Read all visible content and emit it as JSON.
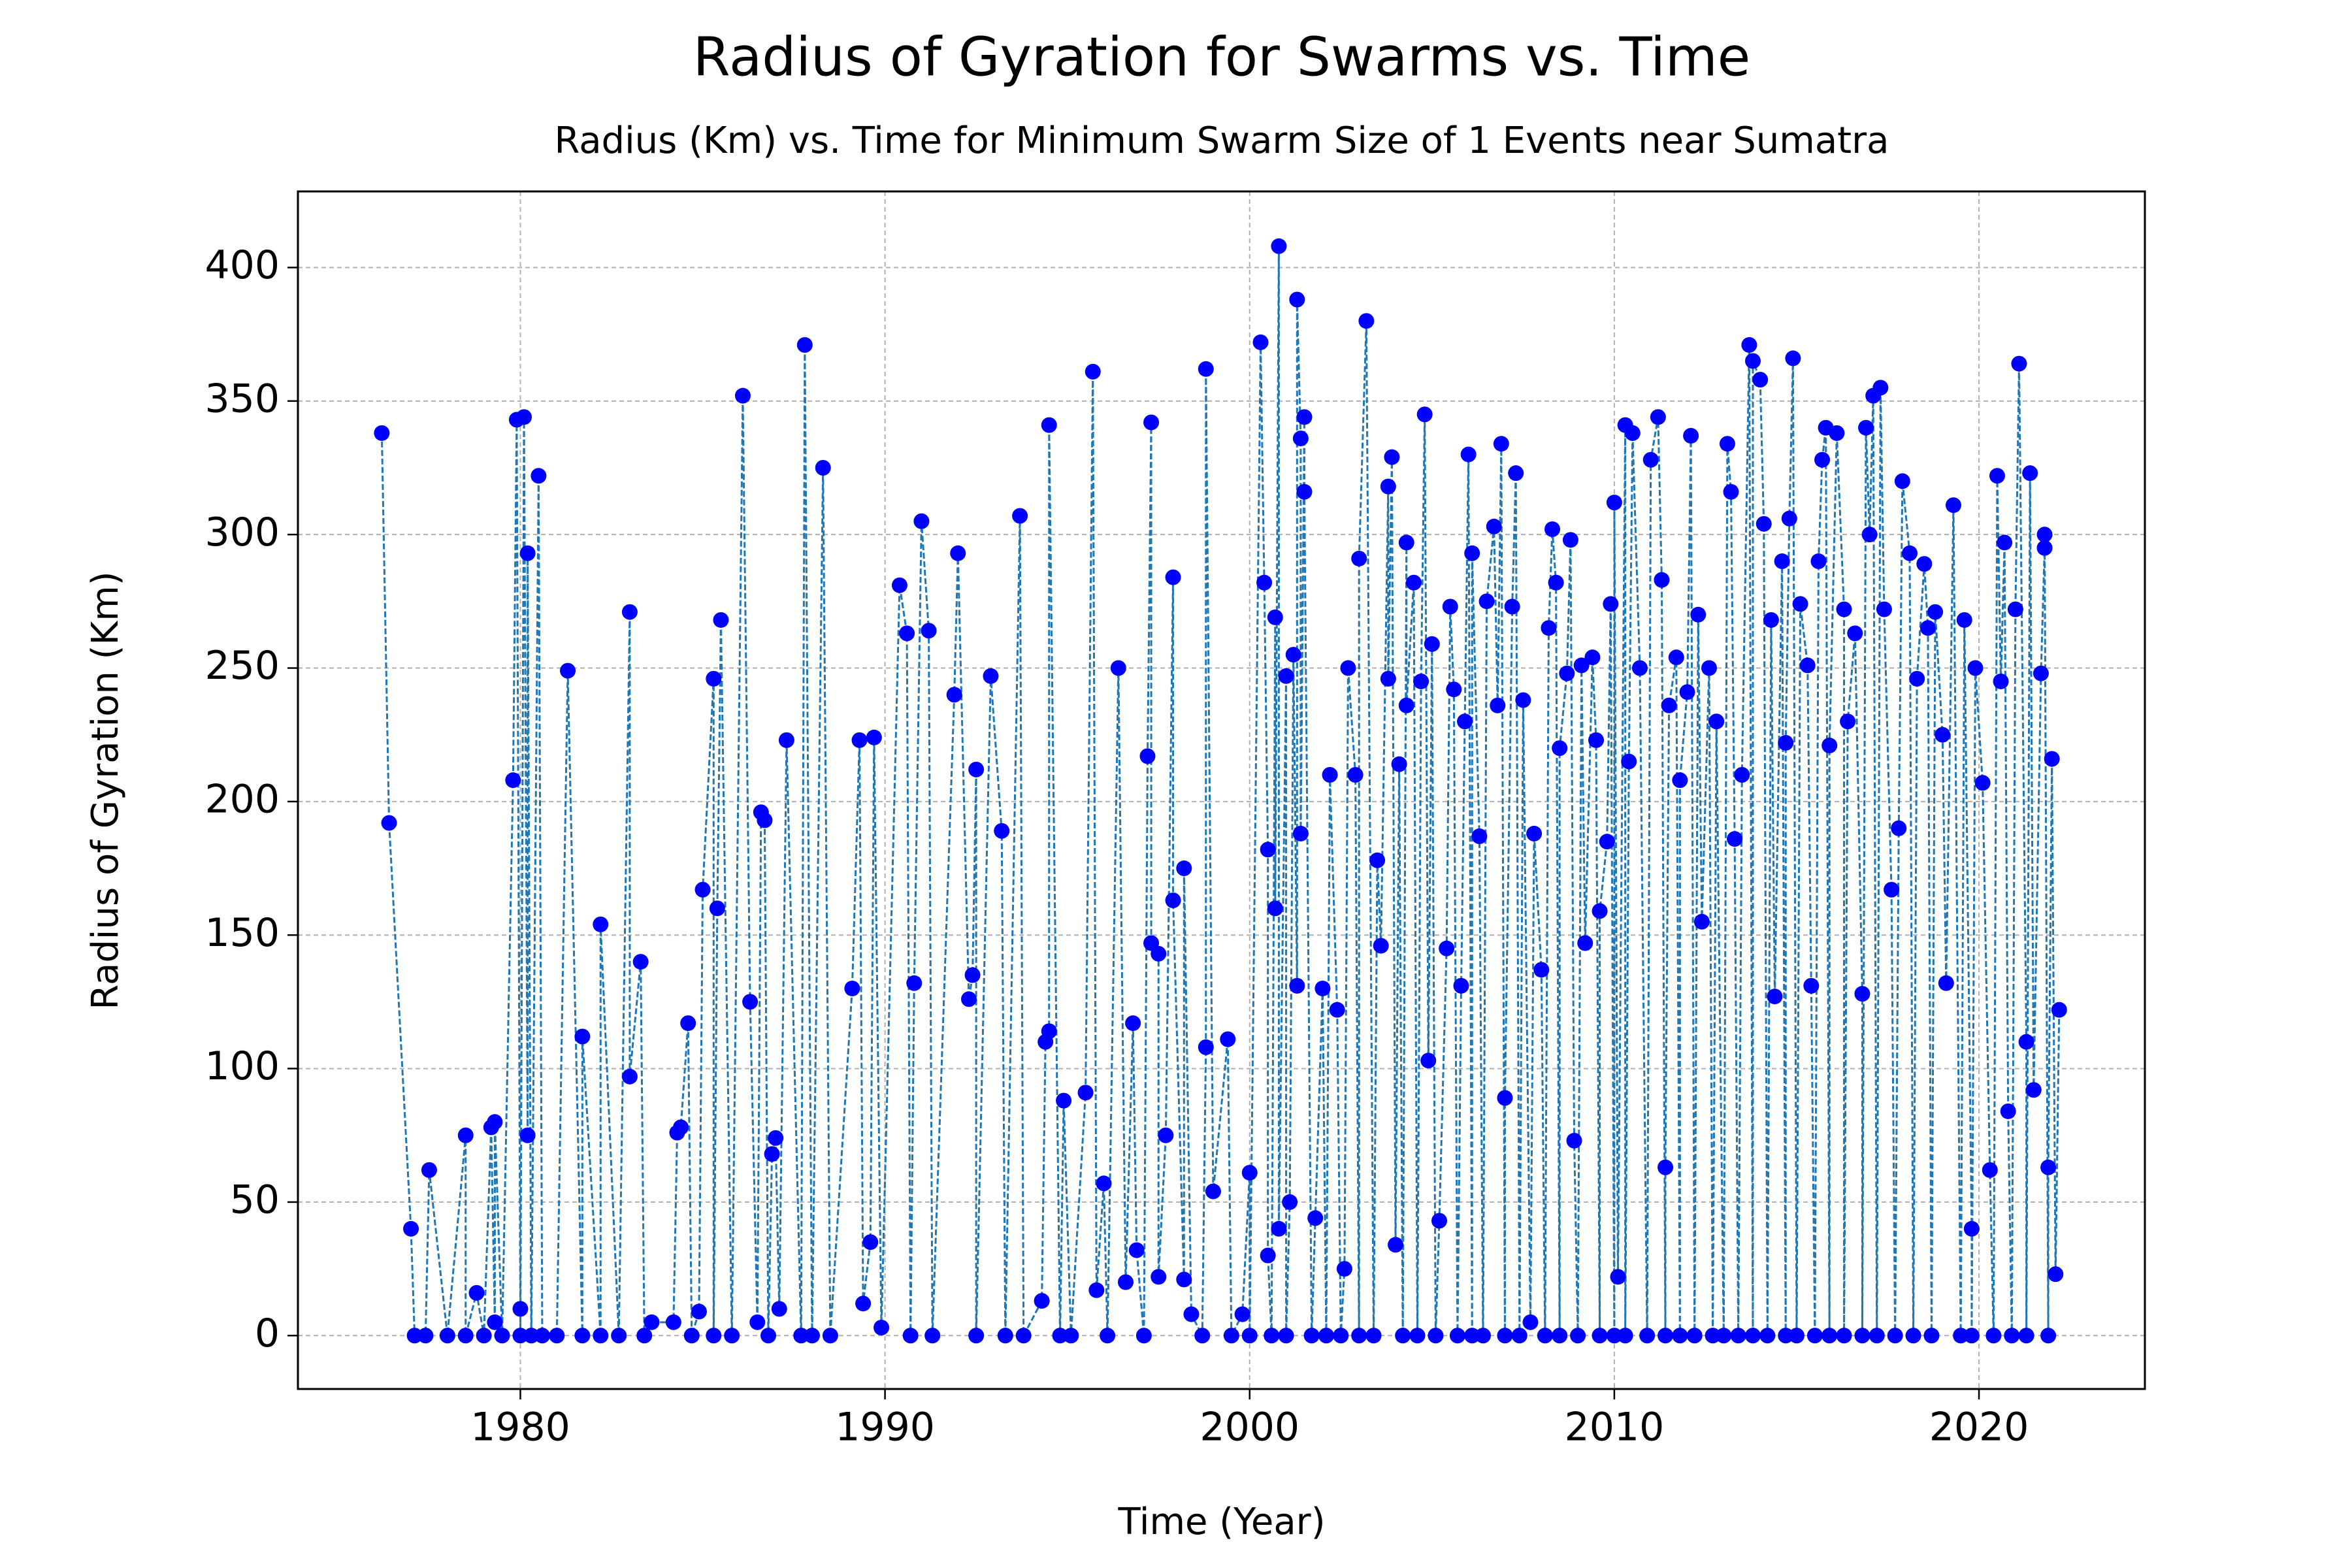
{
  "chart_data": {
    "type": "line",
    "title": "Radius of Gyration for Swarms vs. Time",
    "subtitle": "Radius (Km) vs. Time for Minimum Swarm Size of 1 Events near Sumatra",
    "x_label": "Time (Year)",
    "y_label": "Radius of Gyration (Km)",
    "line_color": "#1f77b4",
    "marker_color": "#0000ff",
    "line_style": "dashed",
    "grid": true,
    "xlim": [
      1973.9,
      2024.55
    ],
    "ylim": [
      -20,
      428.5
    ],
    "xticks": [
      1980,
      1990,
      2000,
      2010,
      2020
    ],
    "yticks": [
      0,
      50,
      100,
      150,
      200,
      250,
      300,
      350,
      400
    ],
    "x": [
      1976.2,
      1976.4,
      1977.0,
      1977.1,
      1977.4,
      1977.5,
      1978.0,
      1978.5,
      1978.5,
      1978.8,
      1979.0,
      1979.2,
      1979.3,
      1979.3,
      1979.5,
      1979.8,
      1979.9,
      1980.0,
      1980.0,
      1980.1,
      1980.2,
      1980.2,
      1980.3,
      1980.5,
      1980.6,
      1981.0,
      1981.3,
      1981.7,
      1981.7,
      1982.2,
      1982.2,
      1982.7,
      1983.0,
      1983.0,
      1983.3,
      1983.4,
      1983.6,
      1984.2,
      1984.3,
      1984.4,
      1984.6,
      1984.7,
      1984.9,
      1985.0,
      1985.3,
      1985.3,
      1985.4,
      1985.5,
      1985.8,
      1986.1,
      1986.3,
      1986.5,
      1986.6,
      1986.7,
      1986.8,
      1986.9,
      1987.0,
      1987.1,
      1987.3,
      1987.7,
      1987.8,
      1988.0,
      1988.3,
      1988.5,
      1989.1,
      1989.3,
      1989.4,
      1989.6,
      1989.7,
      1989.9,
      1990.4,
      1990.6,
      1990.7,
      1990.8,
      1991.0,
      1991.2,
      1991.3,
      1991.9,
      1992.0,
      1992.3,
      1992.4,
      1992.5,
      1992.5,
      1992.9,
      1993.2,
      1993.3,
      1993.7,
      1993.8,
      1994.3,
      1994.4,
      1994.5,
      1994.5,
      1994.8,
      1994.9,
      1995.1,
      1995.5,
      1995.7,
      1995.8,
      1996.0,
      1996.1,
      1996.4,
      1996.6,
      1996.8,
      1996.9,
      1997.1,
      1997.2,
      1997.3,
      1997.3,
      1997.5,
      1997.5,
      1997.7,
      1997.9,
      1997.9,
      1998.2,
      1998.2,
      1998.4,
      1998.7,
      1998.8,
      1998.8,
      1999.0,
      1999.4,
      1999.5,
      1999.8,
      2000.0,
      2000.0,
      2000.3,
      2000.4,
      2000.5,
      2000.5,
      2000.6,
      2000.7,
      2000.7,
      2000.8,
      2000.8,
      2001.0,
      2001.0,
      2001.1,
      2001.2,
      2001.3,
      2001.3,
      2001.4,
      2001.4,
      2001.5,
      2001.5,
      2001.7,
      2001.8,
      2002.0,
      2002.1,
      2002.2,
      2002.4,
      2002.5,
      2002.6,
      2002.7,
      2002.9,
      2003.0,
      2003.0,
      2003.2,
      2003.4,
      2003.5,
      2003.6,
      2003.8,
      2003.8,
      2003.9,
      2004.0,
      2004.1,
      2004.2,
      2004.3,
      2004.3,
      2004.5,
      2004.6,
      2004.7,
      2004.8,
      2004.9,
      2005.0,
      2005.1,
      2005.2,
      2005.4,
      2005.5,
      2005.6,
      2005.7,
      2005.8,
      2005.9,
      2006.0,
      2006.1,
      2006.1,
      2006.3,
      2006.4,
      2006.5,
      2006.7,
      2006.8,
      2006.9,
      2007.0,
      2007.0,
      2007.2,
      2007.3,
      2007.4,
      2007.5,
      2007.7,
      2007.8,
      2008.0,
      2008.1,
      2008.2,
      2008.3,
      2008.4,
      2008.5,
      2008.5,
      2008.7,
      2008.8,
      2008.9,
      2009.0,
      2009.1,
      2009.2,
      2009.4,
      2009.5,
      2009.6,
      2009.6,
      2009.8,
      2009.9,
      2010.0,
      2010.0,
      2010.1,
      2010.3,
      2010.3,
      2010.4,
      2010.5,
      2010.7,
      2010.9,
      2011.0,
      2011.2,
      2011.3,
      2011.4,
      2011.4,
      2011.5,
      2011.7,
      2011.8,
      2011.8,
      2012.0,
      2012.1,
      2012.2,
      2012.3,
      2012.4,
      2012.6,
      2012.7,
      2012.8,
      2013.0,
      2013.1,
      2013.2,
      2013.3,
      2013.4,
      2013.5,
      2013.7,
      2013.8,
      2013.8,
      2014.0,
      2014.1,
      2014.2,
      2014.3,
      2014.4,
      2014.6,
      2014.7,
      2014.7,
      2014.8,
      2014.9,
      2015.0,
      2015.1,
      2015.3,
      2015.4,
      2015.5,
      2015.6,
      2015.7,
      2015.8,
      2015.9,
      2015.9,
      2016.1,
      2016.3,
      2016.3,
      2016.4,
      2016.6,
      2016.8,
      2016.8,
      2016.9,
      2017.0,
      2017.1,
      2017.2,
      2017.3,
      2017.4,
      2017.6,
      2017.7,
      2017.8,
      2017.9,
      2018.1,
      2018.2,
      2018.3,
      2018.5,
      2018.6,
      2018.7,
      2018.8,
      2019.0,
      2019.1,
      2019.3,
      2019.5,
      2019.6,
      2019.8,
      2019.8,
      2019.9,
      2020.1,
      2020.3,
      2020.4,
      2020.5,
      2020.6,
      2020.7,
      2020.8,
      2020.9,
      2021.0,
      2021.1,
      2021.3,
      2021.3,
      2021.4,
      2021.5,
      2021.7,
      2021.8,
      2021.8,
      2021.9,
      2021.9,
      2022.0,
      2022.1,
      2022.2
    ],
    "values": [
      338,
      192,
      40,
      0,
      0,
      62,
      0,
      75,
      0,
      16,
      0,
      78,
      5,
      80,
      0,
      208,
      343,
      10,
      0,
      344,
      75,
      293,
      0,
      322,
      0,
      0,
      249,
      0,
      112,
      0,
      154,
      0,
      271,
      97,
      140,
      0,
      5,
      5,
      76,
      78,
      117,
      0,
      9,
      167,
      246,
      0,
      160,
      268,
      0,
      352,
      125,
      5,
      196,
      193,
      0,
      68,
      74,
      10,
      223,
      0,
      371,
      0,
      325,
      0,
      130,
      223,
      12,
      35,
      224,
      3,
      281,
      263,
      0,
      132,
      305,
      264,
      0,
      240,
      293,
      126,
      135,
      212,
      0,
      247,
      189,
      0,
      307,
      0,
      13,
      110,
      114,
      341,
      0,
      88,
      0,
      91,
      361,
      17,
      57,
      0,
      250,
      20,
      117,
      32,
      0,
      217,
      342,
      147,
      143,
      22,
      75,
      284,
      163,
      21,
      175,
      8,
      0,
      108,
      362,
      54,
      111,
      0,
      8,
      61,
      0,
      372,
      282,
      182,
      30,
      0,
      269,
      160,
      408,
      40,
      247,
      0,
      50,
      255,
      131,
      388,
      336,
      188,
      344,
      316,
      0,
      44,
      130,
      0,
      210,
      122,
      0,
      25,
      250,
      210,
      0,
      291,
      380,
      0,
      178,
      146,
      318,
      246,
      329,
      34,
      214,
      0,
      297,
      236,
      282,
      0,
      245,
      345,
      103,
      259,
      0,
      43,
      145,
      273,
      242,
      0,
      131,
      230,
      330,
      0,
      293,
      187,
      0,
      275,
      303,
      236,
      334,
      0,
      89,
      273,
      323,
      0,
      238,
      5,
      188,
      137,
      0,
      265,
      302,
      282,
      0,
      220,
      248,
      298,
      73,
      0,
      251,
      147,
      254,
      223,
      0,
      159,
      185,
      274,
      0,
      312,
      22,
      341,
      0,
      215,
      338,
      250,
      0,
      328,
      344,
      283,
      0,
      63,
      236,
      254,
      0,
      208,
      241,
      337,
      0,
      270,
      155,
      250,
      0,
      230,
      0,
      334,
      316,
      186,
      0,
      210,
      371,
      0,
      365,
      358,
      304,
      0,
      268,
      127,
      290,
      0,
      222,
      306,
      366,
      0,
      274,
      251,
      131,
      0,
      290,
      328,
      340,
      0,
      221,
      338,
      272,
      0,
      230,
      263,
      128,
      0,
      340,
      300,
      352,
      0,
      355,
      272,
      167,
      0,
      190,
      320,
      293,
      0,
      246,
      289,
      265,
      0,
      271,
      225,
      132,
      311,
      0,
      268,
      40,
      0,
      250,
      207,
      62,
      0,
      322,
      245,
      297,
      84,
      0,
      272,
      364,
      110,
      0,
      323,
      92,
      248,
      295,
      300,
      0,
      63,
      216,
      23,
      122
    ]
  }
}
